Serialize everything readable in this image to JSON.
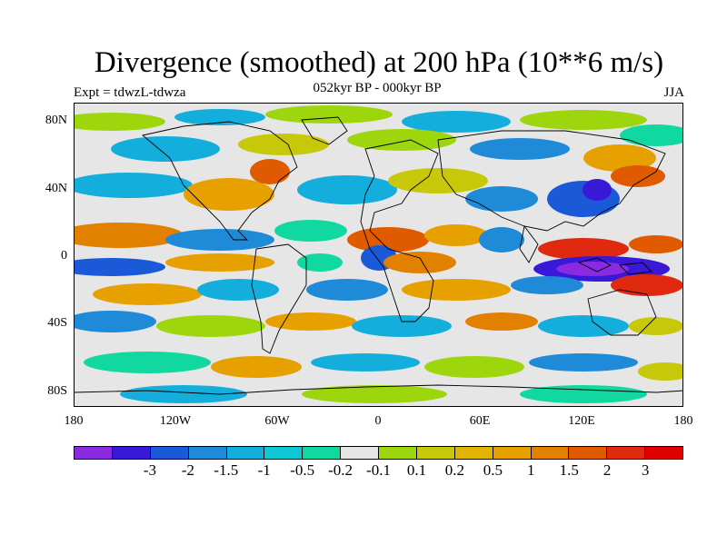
{
  "title": "Divergence (smoothed) at 200 hPa (10**6 m/s)",
  "subtitle": "052kyr BP - 000kyr BP",
  "experiment": "Expt = tdwzL-tdwza",
  "season": "JJA",
  "lat_labels": [
    "80N",
    "40N",
    "0",
    "40S",
    "80S"
  ],
  "lon_labels": [
    "180",
    "120W",
    "60W",
    "0",
    "60E",
    "120E",
    "180"
  ],
  "colorbar": {
    "colors": [
      "#8a2be2",
      "#3a18d8",
      "#1a5ad8",
      "#1e8ad8",
      "#14aedc",
      "#0fc8d6",
      "#10d8a0",
      "#e6e6e6",
      "#9ed60e",
      "#c8c80a",
      "#e0b400",
      "#e6a000",
      "#e28000",
      "#e05a00",
      "#e02a10",
      "#e00000"
    ],
    "labels": [
      "-3",
      "-2",
      "-1.5",
      "-1",
      "-0.5",
      "-0.2",
      "-0.1",
      "0.1",
      "0.2",
      "0.5",
      "1",
      "1.5",
      "2",
      "3"
    ]
  }
}
